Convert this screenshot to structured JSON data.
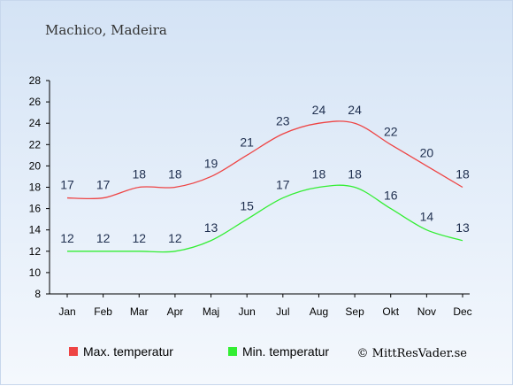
{
  "chart_data": {
    "type": "line",
    "title": "Machico, Madeira",
    "categories": [
      "Jan",
      "Feb",
      "Mar",
      "Apr",
      "Maj",
      "Jun",
      "Jul",
      "Aug",
      "Sep",
      "Okt",
      "Nov",
      "Dec"
    ],
    "ylim": [
      8,
      28
    ],
    "yticks": [
      8,
      10,
      12,
      14,
      16,
      18,
      20,
      22,
      24,
      26,
      28
    ],
    "grid": false,
    "legend_position": "bottom",
    "series": [
      {
        "name": "Max. temperatur",
        "color": "#ee4444",
        "values": [
          17,
          17,
          18,
          18,
          19,
          21,
          23,
          24,
          24,
          22,
          20,
          18
        ]
      },
      {
        "name": "Min. temperatur",
        "color": "#33ee33",
        "values": [
          12,
          12,
          12,
          12,
          13,
          15,
          17,
          18,
          18,
          16,
          14,
          13
        ]
      }
    ],
    "credit": "© MittResVader.se"
  }
}
